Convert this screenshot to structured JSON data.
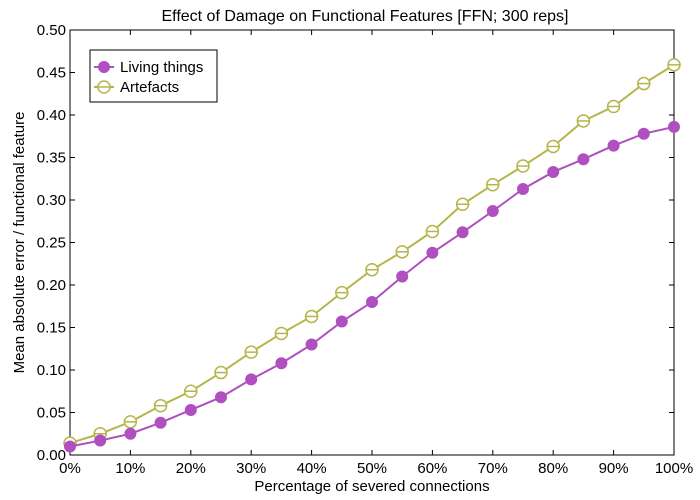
{
  "chart_data": {
    "type": "line",
    "title": "Effect of Damage on Functional Features [FFN; 300 reps]",
    "xlabel": "Percentage of severed connections",
    "ylabel": "Mean absolute error / functional feature",
    "x": [
      0,
      5,
      10,
      15,
      20,
      25,
      30,
      35,
      40,
      45,
      50,
      55,
      60,
      65,
      70,
      75,
      80,
      85,
      90,
      95,
      100
    ],
    "xlim": [
      0,
      100
    ],
    "ylim": [
      0,
      0.5
    ],
    "x_ticks": [
      0,
      10,
      20,
      30,
      40,
      50,
      60,
      70,
      80,
      90,
      100
    ],
    "x_tick_labels": [
      "0%",
      "10%",
      "20%",
      "30%",
      "40%",
      "50%",
      "60%",
      "70%",
      "80%",
      "90%",
      "100%"
    ],
    "y_ticks": [
      0,
      0.05,
      0.1,
      0.15,
      0.2,
      0.25,
      0.3,
      0.35,
      0.4,
      0.45,
      0.5
    ],
    "y_tick_labels": [
      "0.00",
      "0.05",
      "0.10",
      "0.15",
      "0.20",
      "0.25",
      "0.30",
      "0.35",
      "0.40",
      "0.45",
      "0.50"
    ],
    "grid": false,
    "legend_position": "top-left",
    "series": [
      {
        "name": "Living things",
        "color": "#b04fbf",
        "marker": "filled-circle",
        "values": [
          0.01,
          0.017,
          0.025,
          0.038,
          0.053,
          0.068,
          0.089,
          0.108,
          0.13,
          0.157,
          0.18,
          0.21,
          0.238,
          0.262,
          0.287,
          0.313,
          0.333,
          0.348,
          0.364,
          0.378,
          0.386
        ]
      },
      {
        "name": "Artefacts",
        "color": "#b5b54a",
        "marker": "open-circle-errorbar",
        "values": [
          0.014,
          0.025,
          0.039,
          0.058,
          0.075,
          0.097,
          0.121,
          0.143,
          0.163,
          0.191,
          0.218,
          0.239,
          0.263,
          0.295,
          0.318,
          0.34,
          0.363,
          0.393,
          0.41,
          0.437,
          0.459
        ]
      }
    ]
  }
}
